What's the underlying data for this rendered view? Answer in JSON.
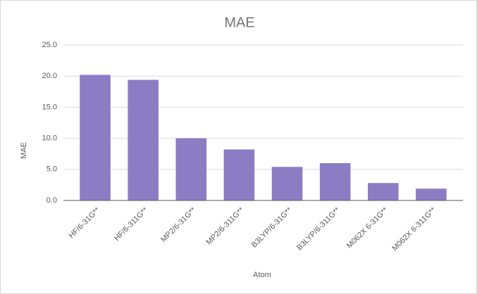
{
  "chart_data": {
    "type": "bar",
    "title": "MAE",
    "x_label": "Atom",
    "y_label": "MAE",
    "categories": [
      "HF/6-31G**",
      "HF/6-311G**",
      "MP2/6-31G**",
      "MP2/6-311G**",
      "B3LYP/6-31G**",
      "B3LYP/6-311G**",
      "M062X 6-31G**",
      "M062X 6-311G**"
    ],
    "values": [
      20.2,
      19.4,
      10.0,
      8.2,
      5.4,
      6.0,
      2.8,
      1.9
    ],
    "color": "#8b7cc4",
    "ylim": [
      0,
      25
    ],
    "yticks": [
      {
        "value": 0,
        "label": "0.0"
      },
      {
        "value": 5,
        "label": "5.0"
      },
      {
        "value": 10,
        "label": "10.0"
      },
      {
        "value": 15,
        "label": "15.0"
      },
      {
        "value": 20,
        "label": "20.0"
      },
      {
        "value": 25,
        "label": "25.0"
      }
    ],
    "grid": true
  }
}
